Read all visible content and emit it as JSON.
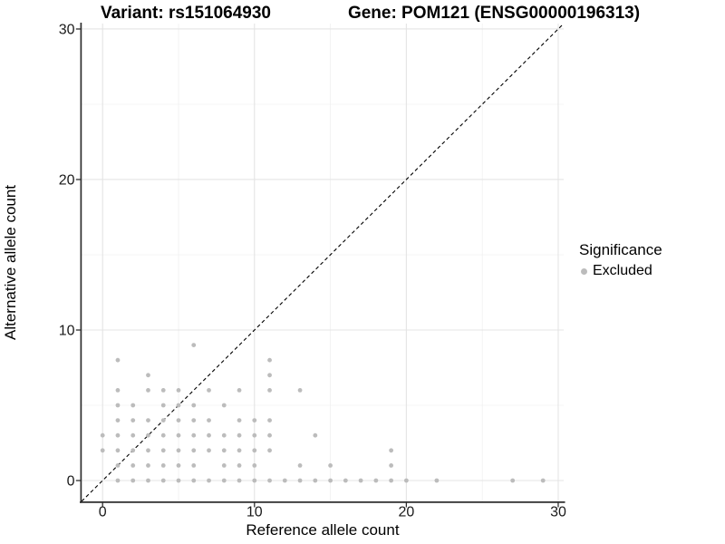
{
  "chart_data": {
    "type": "scatter",
    "titles": {
      "variant": "Variant: rs151064930",
      "gene": "Gene: POM121 (ENSG00000196313)"
    },
    "xlabel": "Reference allele count",
    "ylabel": "Alternative allele count",
    "x_ticks": [
      0,
      10,
      20,
      30
    ],
    "y_ticks": [
      0,
      10,
      20,
      30
    ],
    "x_minor_gridlines": [
      5,
      15,
      25
    ],
    "y_minor_gridlines": [
      5,
      15,
      25
    ],
    "xlim": [
      -1.385,
      30.36
    ],
    "ylim": [
      -1.385,
      30.36
    ],
    "grid": true,
    "identity_line": {
      "type": "y=x",
      "style": "dashed",
      "color": "#000000"
    },
    "legend": {
      "title": "Significance",
      "position": "right",
      "items": [
        {
          "label": "Excluded",
          "color": "#bcbcbc"
        }
      ]
    },
    "series": [
      {
        "name": "Excluded",
        "color": "#bcbcbc",
        "rows": [
          {
            "y": 0,
            "x": [
              1,
              2,
              3,
              4,
              5,
              6,
              7,
              8,
              9,
              10,
              11,
              12,
              13,
              14,
              15,
              16,
              17,
              18,
              19,
              20,
              22,
              27,
              29
            ]
          },
          {
            "y": 1,
            "x": [
              1,
              2,
              3,
              4,
              5,
              6,
              8,
              9,
              10,
              13,
              15,
              19
            ]
          },
          {
            "y": 2,
            "x": [
              0,
              1,
              2,
              3,
              4,
              5,
              6,
              7,
              8,
              9,
              10,
              11,
              19
            ]
          },
          {
            "y": 3,
            "x": [
              0,
              1,
              2,
              3,
              4,
              5,
              6,
              7,
              8,
              9,
              10,
              11,
              14
            ]
          },
          {
            "y": 4,
            "x": [
              1,
              2,
              3,
              4,
              5,
              6,
              7,
              9,
              10,
              11
            ]
          },
          {
            "y": 5,
            "x": [
              1,
              2,
              4,
              5,
              6,
              8
            ]
          },
          {
            "y": 6,
            "x": [
              1,
              3,
              4,
              5,
              7,
              9,
              11,
              13
            ]
          },
          {
            "y": 7,
            "x": [
              3,
              11
            ]
          },
          {
            "y": 8,
            "x": [
              1,
              11
            ]
          },
          {
            "y": 9,
            "x": [
              6
            ]
          }
        ]
      }
    ],
    "style": {
      "point_radius": 2.4,
      "grid_major_color": "#e4e4e4",
      "grid_minor_color": "#f0f0f0",
      "axis_color": "#2f2f2f",
      "tick_label_color": "#1a1a1a",
      "background": "#ffffff"
    }
  }
}
